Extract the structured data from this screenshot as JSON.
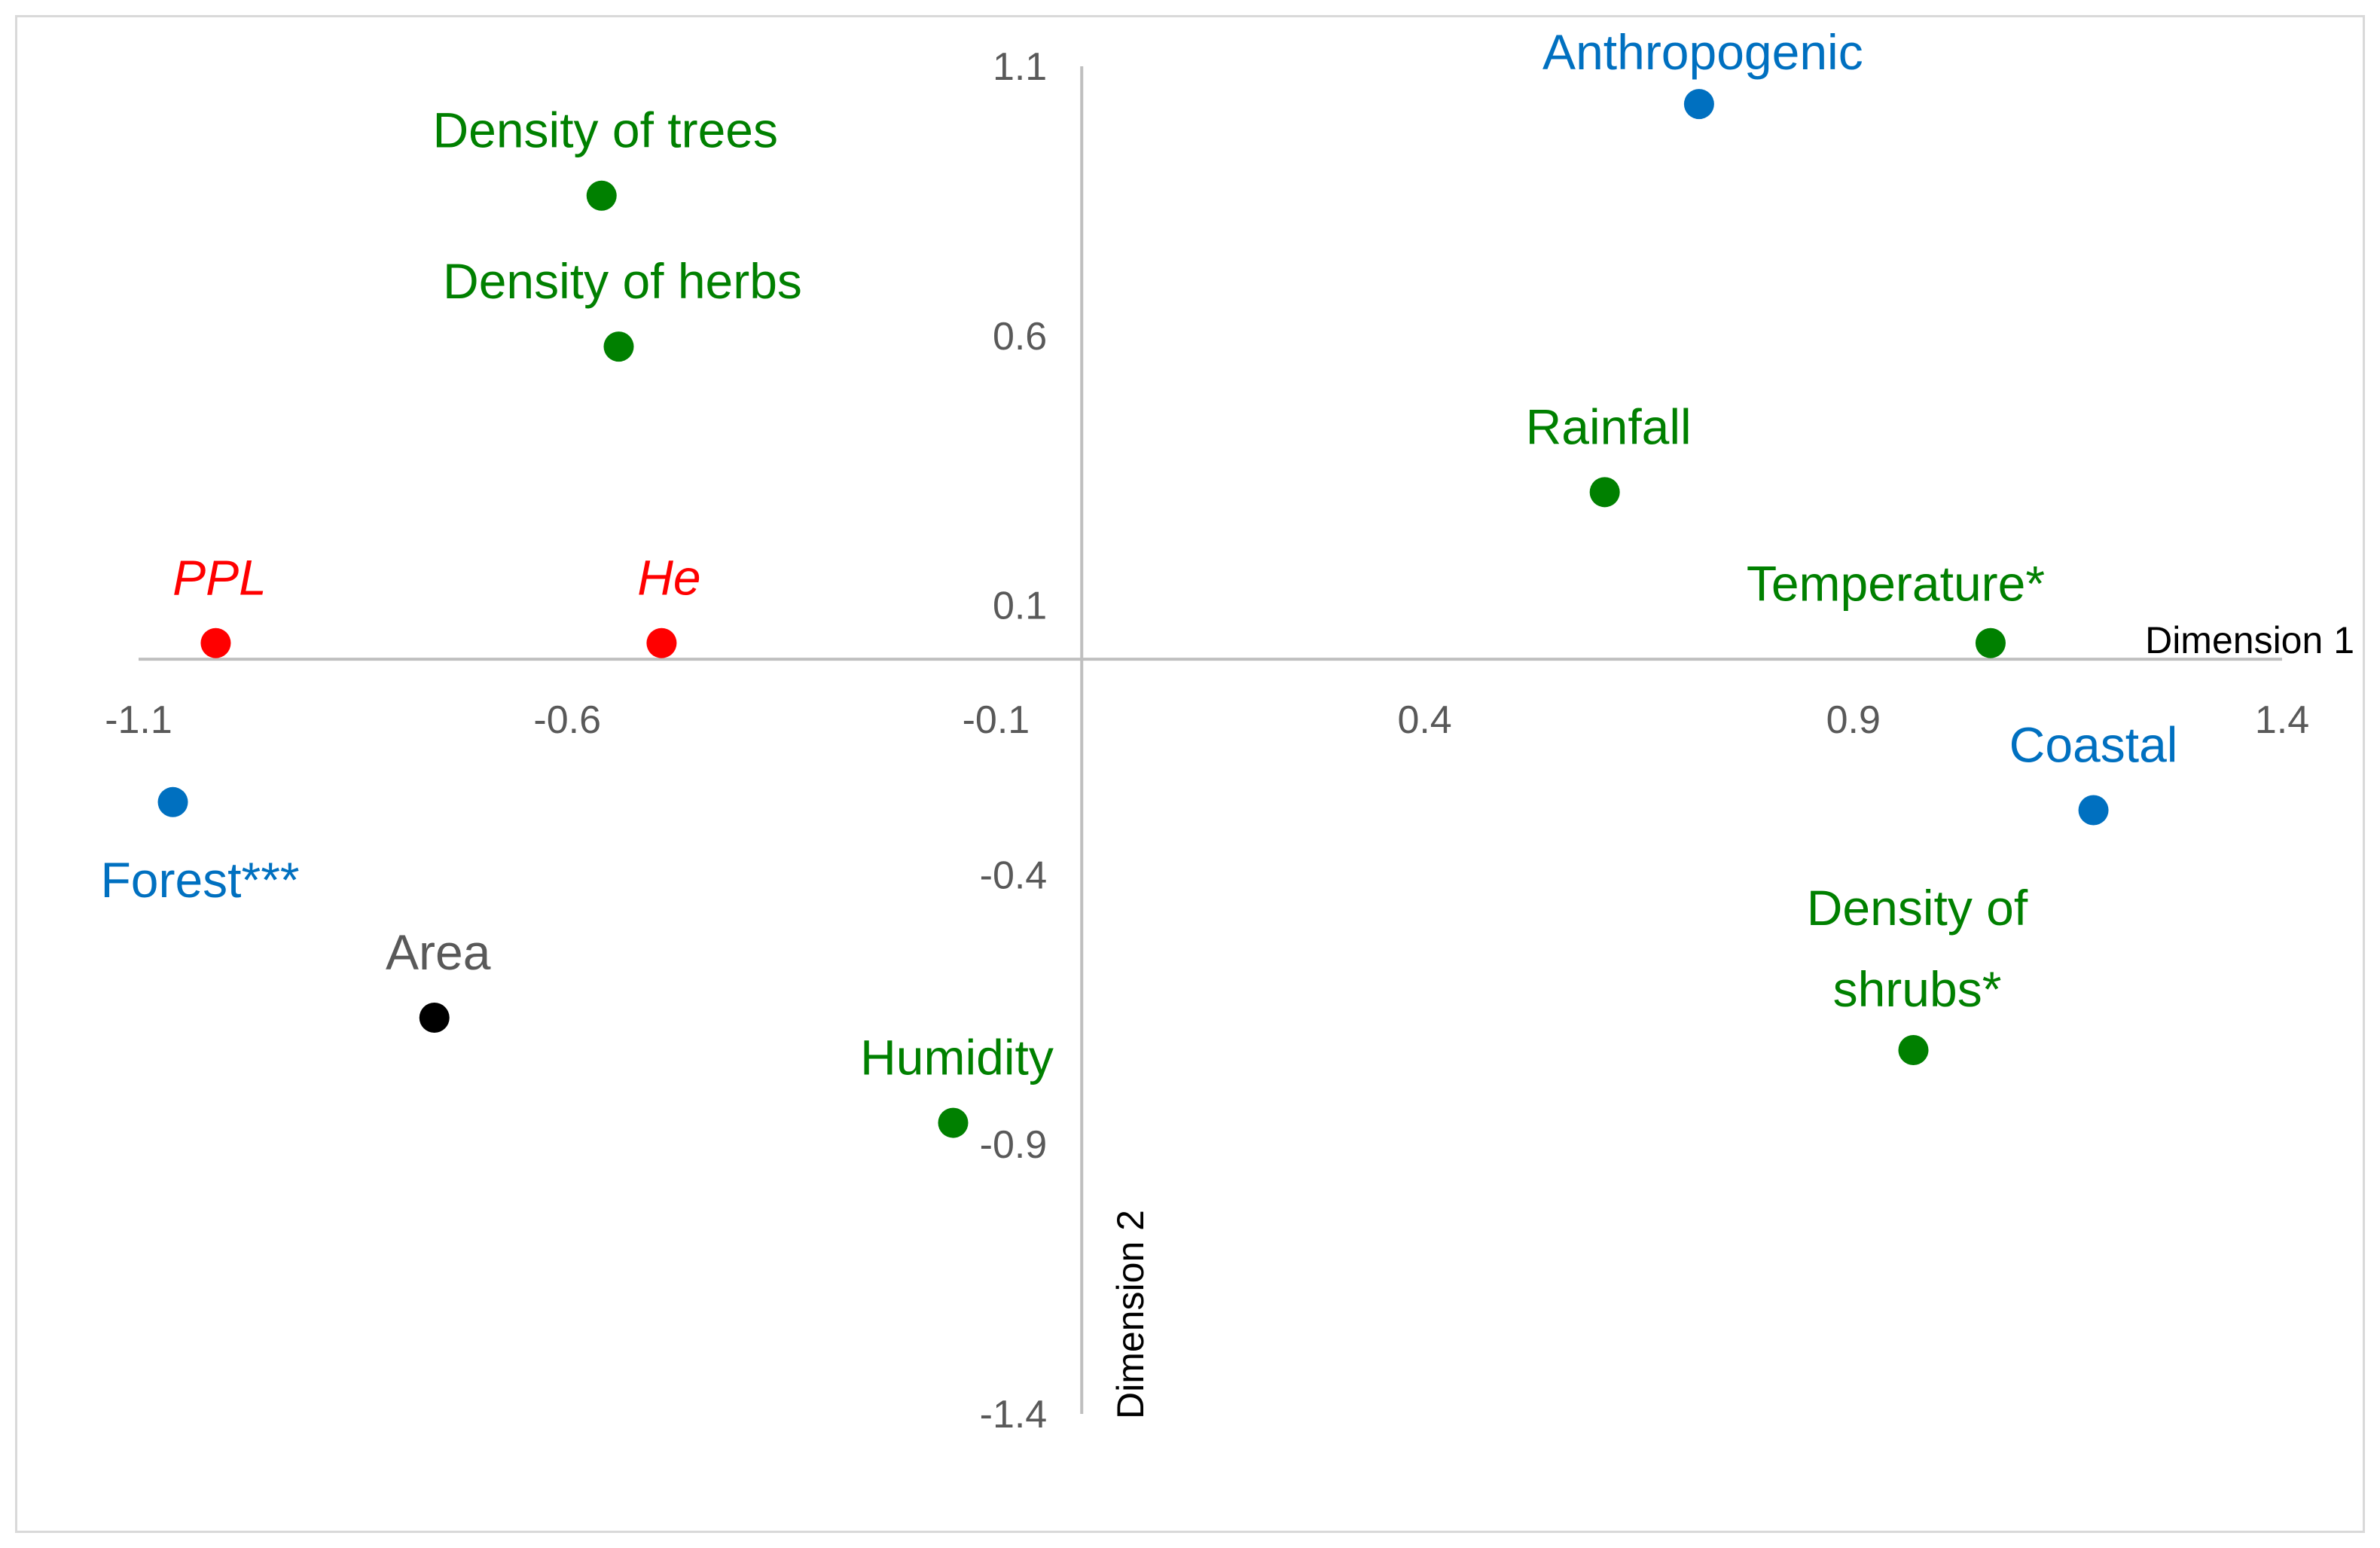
{
  "chart_data": {
    "type": "scatter",
    "title": "",
    "xlabel": "Dimension 1",
    "ylabel": "Dimension 2",
    "xlim": [
      -1.1,
      1.4
    ],
    "ylim": [
      -1.4,
      1.1
    ],
    "x_ticks": [
      "-1.1",
      "-0.6",
      "-0.1",
      "0.4",
      "0.9",
      "1.4"
    ],
    "y_ticks": [
      "1.1",
      "0.6",
      "0.1",
      "-0.4",
      "-0.9",
      "-1.4"
    ],
    "grid": false,
    "colors": {
      "green": "#008000",
      "blue": "#0070c0",
      "red": "#ff0000",
      "black": "#000000",
      "gray_label": "#595959"
    },
    "points": [
      {
        "label": "Anthropogenic",
        "x": 0.72,
        "y": 1.03,
        "group": "blue"
      },
      {
        "label": "Density of trees",
        "x": -0.56,
        "y": 0.86,
        "group": "green"
      },
      {
        "label": "Density of herbs",
        "x": -0.54,
        "y": 0.58,
        "group": "green"
      },
      {
        "label": "Rainfall",
        "x": 0.61,
        "y": 0.31,
        "group": "green"
      },
      {
        "label": "Temperature*",
        "x": 1.06,
        "y": 0.03,
        "group": "green"
      },
      {
        "label": "PPL",
        "x": -1.01,
        "y": 0.03,
        "group": "red",
        "italic": true
      },
      {
        "label": "He",
        "x": -0.49,
        "y": 0.03,
        "group": "red",
        "italic": true
      },
      {
        "label": "Coastal",
        "x": 1.18,
        "y": -0.28,
        "group": "blue"
      },
      {
        "label": "Forest***",
        "x": -1.06,
        "y": -0.265,
        "group": "blue"
      },
      {
        "label": "Density of shrubs*",
        "label_lines": [
          "Density of",
          "shrubs*"
        ],
        "x": 0.97,
        "y": -0.725,
        "group": "green"
      },
      {
        "label": "Area",
        "x": -0.755,
        "y": -0.665,
        "group": "black",
        "label_group": "gray_label"
      },
      {
        "label": "Humidity",
        "x": -0.15,
        "y": -0.86,
        "group": "green"
      }
    ]
  }
}
